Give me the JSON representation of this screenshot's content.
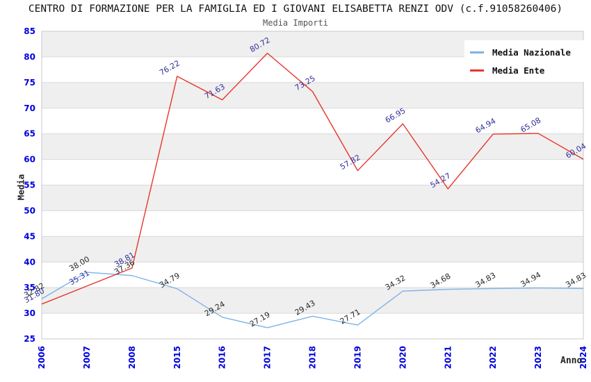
{
  "chart_data": {
    "type": "line",
    "title": "CENTRO DI FORMAZIONE PER LA FAMIGLIA ED I GIOVANI ELISABETTA RENZI ODV (c.f.91058260406)",
    "subtitle": "Media Importi",
    "xlabel": "Anno",
    "ylabel": "Media",
    "ylim": [
      25,
      85
    ],
    "ytick_step": 5,
    "grid": "horizontal",
    "band_fill": "alternating",
    "band_color": "#efefef",
    "gridline_color": "#d9d9d9",
    "plot_border_color": "#c9c9c9",
    "tick_label_color": "#0000dd",
    "legend_position": "top-right",
    "categories": [
      "2006",
      "2007",
      "2008",
      "2015",
      "2016",
      "2017",
      "2018",
      "2019",
      "2020",
      "2021",
      "2022",
      "2023",
      "2024"
    ],
    "series": [
      {
        "name": "Media Nazionale",
        "color": "#7db3e6",
        "label_color": "#262626",
        "values": [
          32.82,
          38.0,
          37.36,
          34.79,
          29.24,
          27.19,
          29.43,
          27.71,
          34.32,
          34.68,
          34.83,
          34.94,
          34.83
        ]
      },
      {
        "name": "Media Ente",
        "color": "#e8352a",
        "label_color": "#2f2f99",
        "values": [
          31.8,
          35.31,
          38.81,
          76.22,
          71.63,
          80.72,
          73.25,
          57.82,
          66.95,
          54.27,
          64.94,
          65.08,
          60.04
        ]
      }
    ]
  }
}
